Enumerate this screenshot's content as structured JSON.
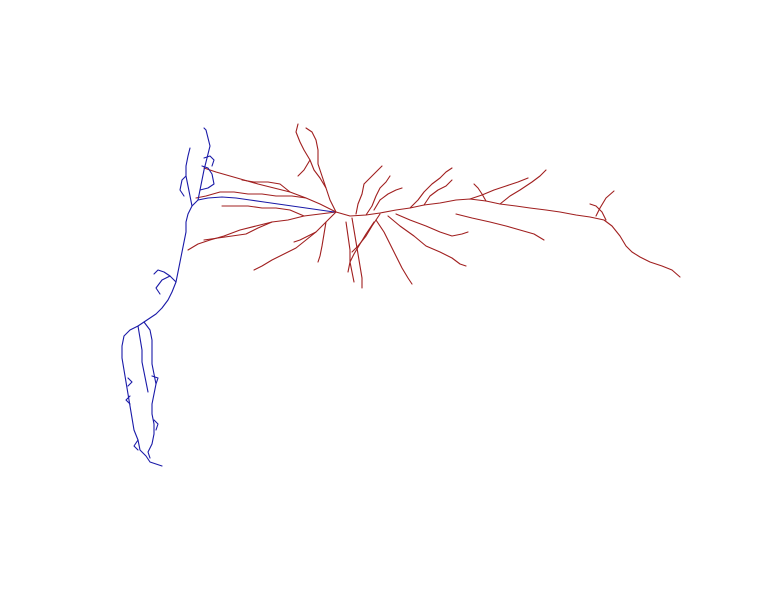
{
  "figure": {
    "colors": {
      "background": "#ffffff",
      "dendrite": "#a01f1f",
      "axon": "#1a1aa8"
    }
  }
}
